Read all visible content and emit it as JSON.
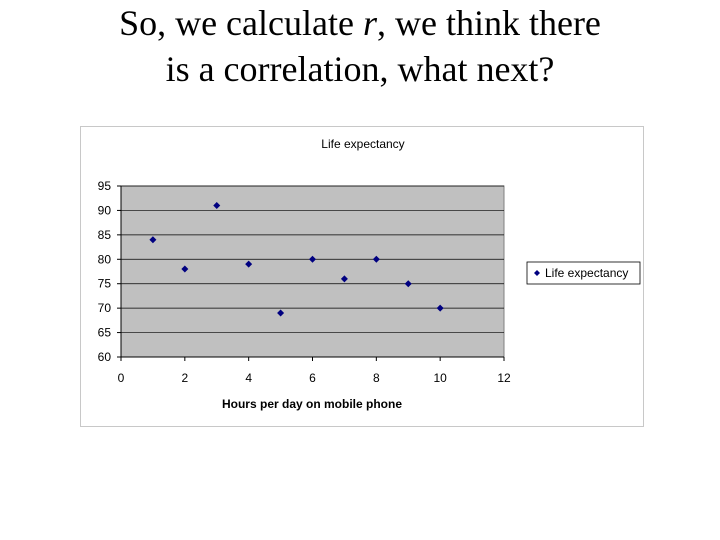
{
  "slide": {
    "title_line1_part1": "So, we calculate ",
    "title_line1_var": "r",
    "title_line1_part2": ", we think there",
    "title_line2": "is a correlation, what next?"
  },
  "colors": {
    "plot_bg": "#c0c0c0",
    "marker": "#000080",
    "grid": "#000000"
  },
  "chart_data": {
    "type": "scatter",
    "title": "Life expectancy",
    "xlabel": "Hours per day on mobile phone",
    "ylabel": "",
    "xlim": [
      0,
      12
    ],
    "ylim": [
      60,
      95
    ],
    "xticks": [
      0,
      2,
      4,
      6,
      8,
      10,
      12
    ],
    "yticks": [
      60,
      65,
      70,
      75,
      80,
      85,
      90,
      95
    ],
    "grid": "horizontal",
    "legend_position": "right",
    "series": [
      {
        "name": "Life expectancy",
        "marker": "diamond",
        "x": [
          1,
          2,
          3,
          4,
          5,
          6,
          7,
          8,
          9,
          10
        ],
        "y": [
          84,
          78,
          91,
          79,
          69,
          80,
          76,
          80,
          75,
          70
        ]
      }
    ]
  }
}
